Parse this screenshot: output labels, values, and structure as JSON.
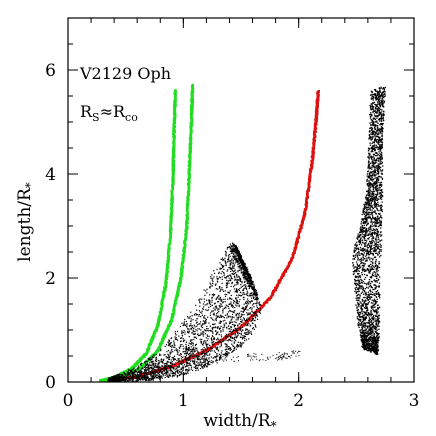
{
  "chart_data": {
    "type": "scatter",
    "title": "",
    "xlabel": "width/R",
    "xlabel_sub": "*",
    "ylabel": "length/R",
    "ylabel_sub": "*",
    "xlim": [
      0,
      3
    ],
    "ylim": [
      0,
      7
    ],
    "x_ticks": [
      0,
      1,
      2,
      3
    ],
    "y_ticks": [
      0,
      2,
      4,
      6
    ],
    "grid": false,
    "annotations": [
      {
        "text": "V2129 Oph",
        "x": 0.06,
        "y": 6.0
      },
      {
        "text": "R",
        "sub": "S",
        "mid": "≈R",
        "sub2": "co",
        "x": 0.06,
        "y": 5.2
      }
    ],
    "series": [
      {
        "color": "#22dd22",
        "kind": "curve",
        "points": [
          [
            0.28,
            0.02
          ],
          [
            0.4,
            0.08
          ],
          [
            0.55,
            0.25
          ],
          [
            0.68,
            0.55
          ],
          [
            0.78,
            1.1
          ],
          [
            0.85,
            1.9
          ],
          [
            0.89,
            2.9
          ],
          [
            0.91,
            3.9
          ],
          [
            0.92,
            4.8
          ],
          [
            0.93,
            5.6
          ]
        ]
      },
      {
        "color": "#22dd22",
        "kind": "curve",
        "points": [
          [
            0.3,
            0.02
          ],
          [
            0.45,
            0.08
          ],
          [
            0.62,
            0.25
          ],
          [
            0.78,
            0.6
          ],
          [
            0.9,
            1.2
          ],
          [
            0.98,
            2.0
          ],
          [
            1.03,
            3.0
          ],
          [
            1.05,
            4.0
          ],
          [
            1.07,
            5.0
          ],
          [
            1.08,
            5.7
          ]
        ]
      },
      {
        "color": "#dd1111",
        "kind": "curve",
        "points": [
          [
            0.35,
            0.03
          ],
          [
            0.6,
            0.1
          ],
          [
            0.9,
            0.3
          ],
          [
            1.2,
            0.6
          ],
          [
            1.5,
            1.05
          ],
          [
            1.75,
            1.6
          ],
          [
            1.95,
            2.4
          ],
          [
            2.06,
            3.3
          ],
          [
            2.12,
            4.3
          ],
          [
            2.15,
            5.0
          ],
          [
            2.17,
            5.6
          ]
        ]
      },
      {
        "color": "#000000",
        "kind": "cloud",
        "upper": [
          [
            0.35,
            0.08
          ],
          [
            0.55,
            0.25
          ],
          [
            0.75,
            0.55
          ],
          [
            0.95,
            1.05
          ],
          [
            1.15,
            1.7
          ],
          [
            1.3,
            2.3
          ],
          [
            1.38,
            2.6
          ],
          [
            1.43,
            2.7
          ],
          [
            1.47,
            2.5
          ]
        ],
        "lower": [
          [
            0.35,
            0.02
          ],
          [
            0.7,
            0.05
          ],
          [
            1.0,
            0.15
          ],
          [
            1.25,
            0.35
          ],
          [
            1.45,
            0.6
          ],
          [
            1.6,
            0.9
          ],
          [
            1.68,
            1.4
          ],
          [
            1.6,
            1.9
          ],
          [
            1.5,
            2.3
          ]
        ],
        "tail": [
          [
            1.0,
            0.45
          ],
          [
            1.8,
            0.5
          ],
          [
            2.0,
            0.55
          ]
        ]
      },
      {
        "color": "#000000",
        "kind": "band",
        "left": [
          [
            2.62,
            5.6
          ],
          [
            2.6,
            4.6
          ],
          [
            2.58,
            3.6
          ],
          [
            2.53,
            3.0
          ],
          [
            2.46,
            2.5
          ],
          [
            2.48,
            1.7
          ],
          [
            2.52,
            1.0
          ],
          [
            2.55,
            0.65
          ]
        ],
        "right": [
          [
            2.75,
            5.7
          ],
          [
            2.72,
            4.6
          ],
          [
            2.72,
            3.6
          ],
          [
            2.71,
            2.5
          ],
          [
            2.7,
            1.5
          ],
          [
            2.69,
            0.85
          ],
          [
            2.68,
            0.55
          ]
        ]
      }
    ]
  }
}
